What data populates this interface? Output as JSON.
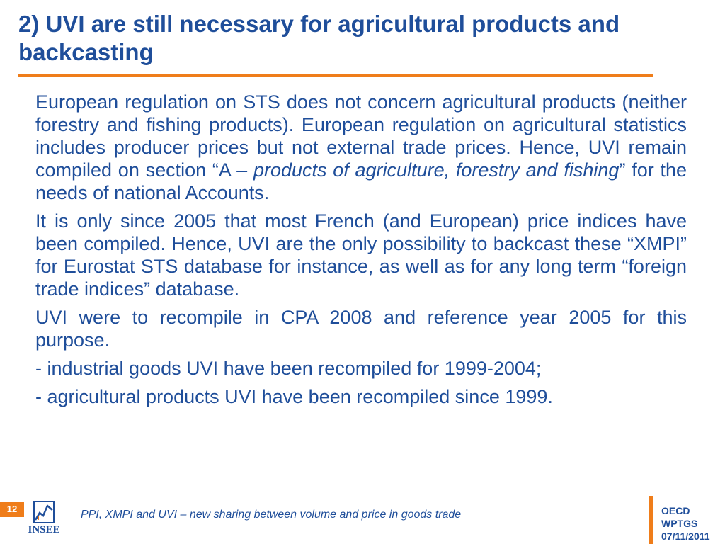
{
  "slide": {
    "title": "2) UVI are still necessary for agricultural products and backcasting",
    "paragraphs": [
      {
        "before": "European regulation on STS does not concern agricultural products (neither forestry and fishing products). European regulation on agricultural statistics includes producer prices but not external trade prices. Hence, UVI remain compiled on section “A – ",
        "italic": "products of agriculture, forestry and fishing",
        "after": "” for the needs of national Accounts."
      },
      {
        "text": "It is only since 2005 that most French (and European) price indices have been compiled. Hence, UVI are the only possibility to backcast these “XMPI” for Eurostat STS database for instance, as well as for any long term “foreign trade indices” database."
      },
      {
        "text": "UVI were to recompile in CPA 2008 and reference year 2005 for this purpose."
      },
      {
        "text": "- industrial goods UVI have been recompiled for 1999-2004;"
      },
      {
        "text": "- agricultural products UVI have been recompiled since 1999."
      }
    ]
  },
  "footer": {
    "page_number": "12",
    "logo_text": "INSEE",
    "caption": "PPI, XMPI and UVI – new sharing between volume and price in goods trade",
    "org_lines": [
      "OECD",
      "WPTGS",
      "07/11/2011"
    ]
  },
  "colors": {
    "text": "#1f4e9a",
    "accent": "#ef7d1a"
  }
}
